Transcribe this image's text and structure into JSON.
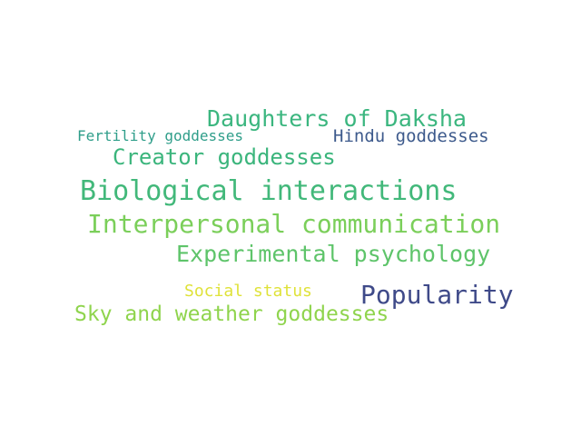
{
  "words": [
    {
      "text": "Daughters of Daksha",
      "color": "#3bb67f"
    },
    {
      "text": "Fertility goddesses",
      "color": "#2f9e8a"
    },
    {
      "text": "Hindu goddesses",
      "color": "#3d5a8c"
    },
    {
      "text": "Creator goddesses",
      "color": "#3bb57c"
    },
    {
      "text": "Biological interactions",
      "color": "#42b87a"
    },
    {
      "text": "Interpersonal communication",
      "color": "#7bcf5a"
    },
    {
      "text": "Experimental psychology",
      "color": "#5ec46a"
    },
    {
      "text": "Social status",
      "color": "#dfe23a"
    },
    {
      "text": "Popularity",
      "color": "#3f4a89"
    },
    {
      "text": "Sky and weather goddesses",
      "color": "#8fd44d"
    }
  ]
}
